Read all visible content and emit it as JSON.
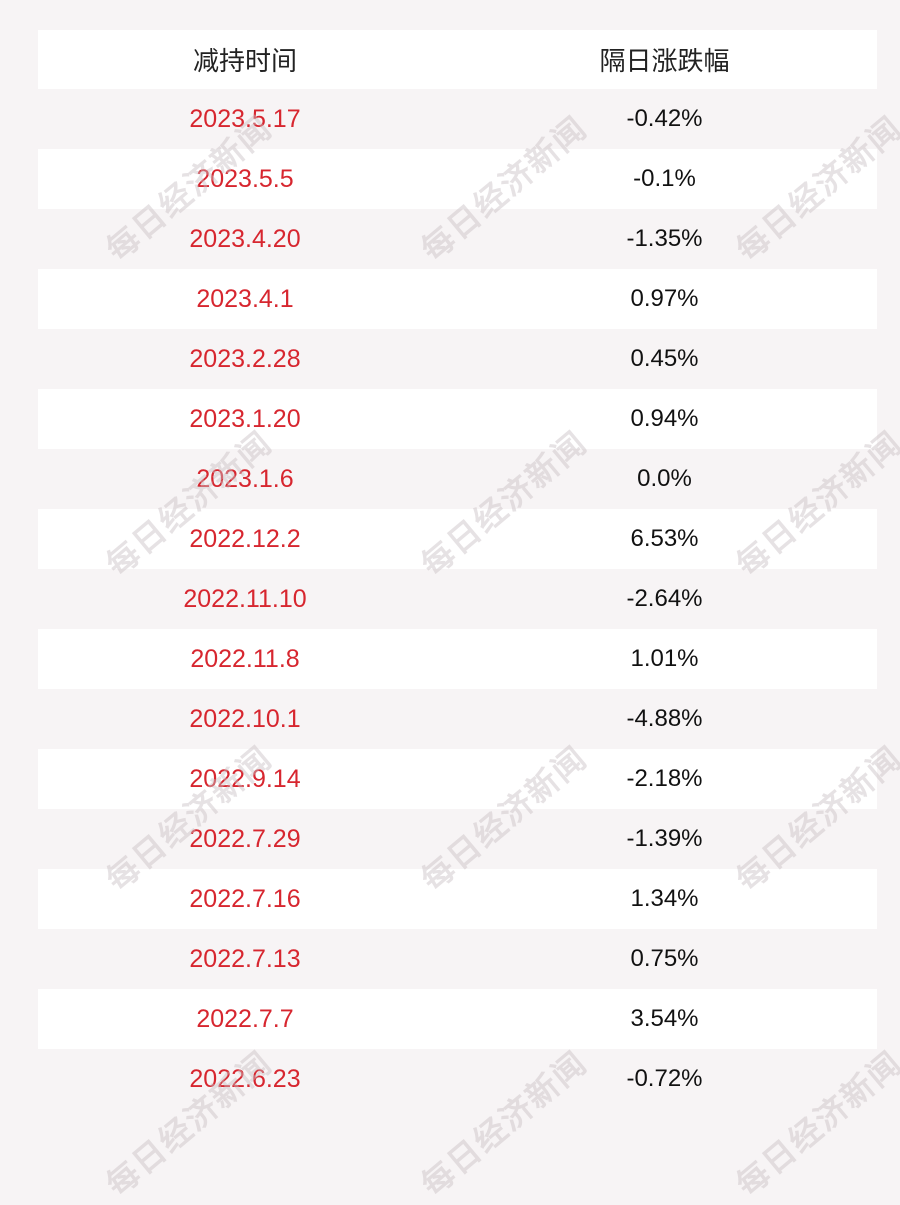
{
  "header": {
    "col_date": "减持时间",
    "col_change": "隔日涨跌幅"
  },
  "rows": [
    {
      "date": "2023.5.17",
      "change": "-0.42%"
    },
    {
      "date": "2023.5.5",
      "change": "-0.1%"
    },
    {
      "date": "2023.4.20",
      "change": "-1.35%"
    },
    {
      "date": "2023.4.1",
      "change": "0.97%"
    },
    {
      "date": "2023.2.28",
      "change": "0.45%"
    },
    {
      "date": "2023.1.20",
      "change": "0.94%"
    },
    {
      "date": "2023.1.6",
      "change": "0.0%"
    },
    {
      "date": "2022.12.2",
      "change": "6.53%"
    },
    {
      "date": "2022.11.10",
      "change": "-2.64%"
    },
    {
      "date": "2022.11.8",
      "change": "1.01%"
    },
    {
      "date": "2022.10.1",
      "change": "-4.88%"
    },
    {
      "date": "2022.9.14",
      "change": "-2.18%"
    },
    {
      "date": "2022.7.29",
      "change": "-1.39%"
    },
    {
      "date": "2022.7.16",
      "change": "1.34%"
    },
    {
      "date": "2022.7.13",
      "change": "0.75%"
    },
    {
      "date": "2022.7.7",
      "change": "3.54%"
    },
    {
      "date": "2022.6.23",
      "change": "-0.72%"
    }
  ],
  "watermark": "每日经济新闻",
  "colors": {
    "date_text": "#d7262f",
    "change_text": "#111111",
    "row_alt": "#f7f4f5",
    "row_white": "#ffffff"
  }
}
